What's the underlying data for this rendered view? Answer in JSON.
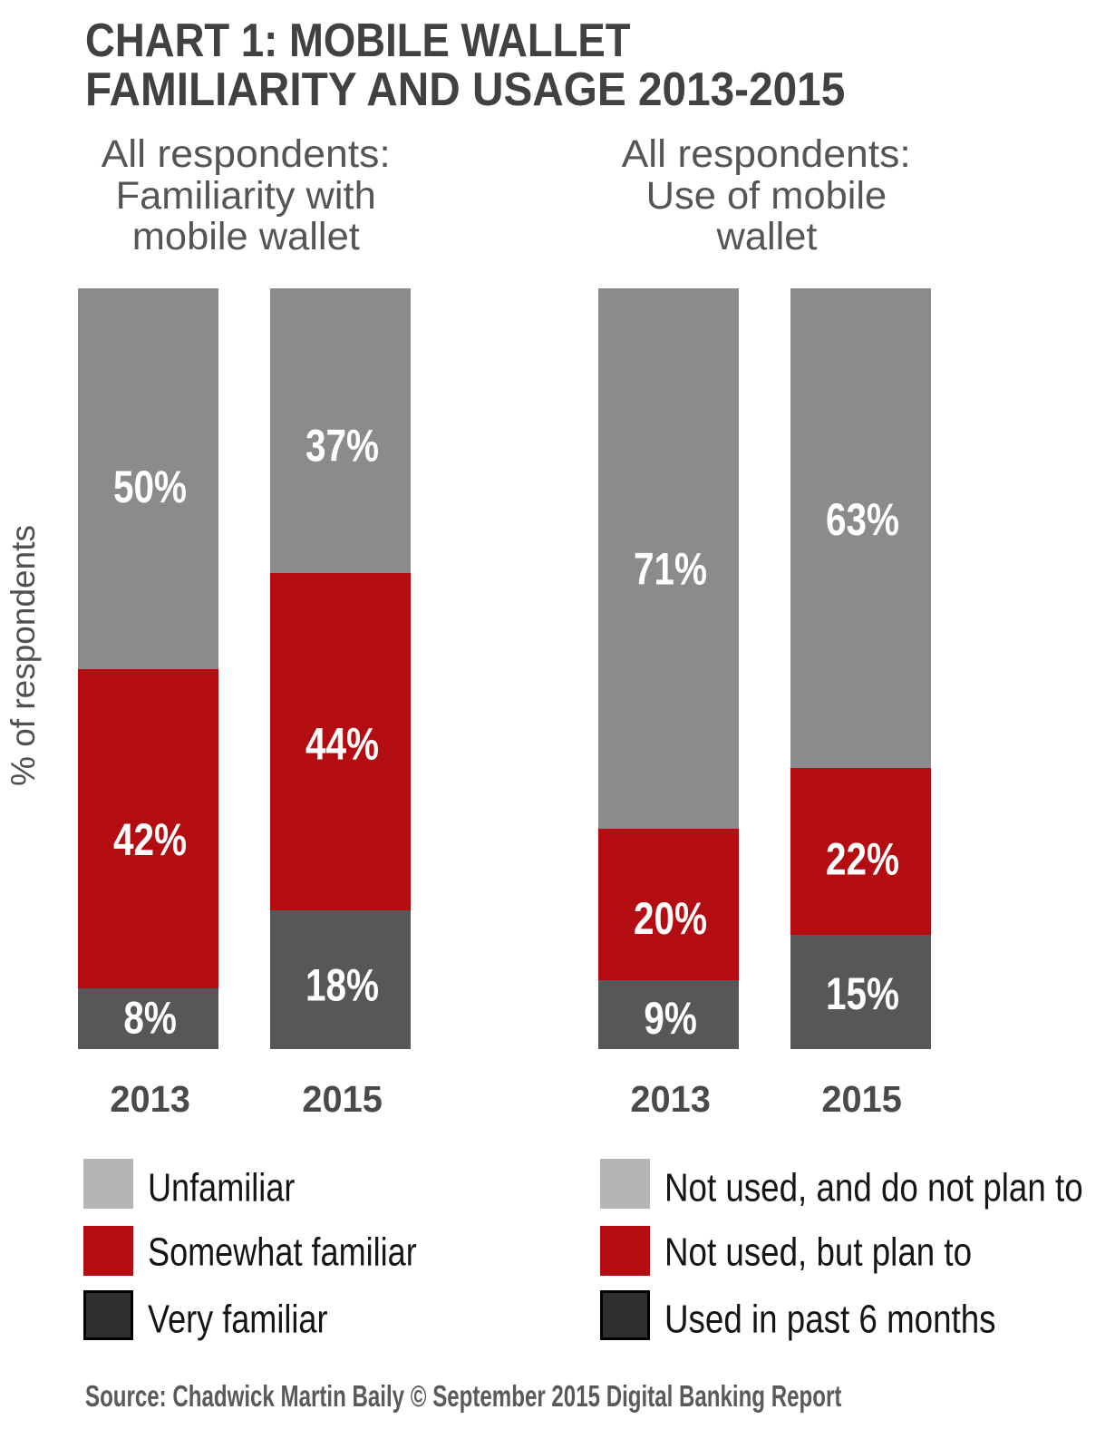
{
  "title": {
    "line1": "CHART 1: MOBILE WALLET",
    "line2": "FAMILIARITY AND USAGE 2013-2015"
  },
  "source_note": "Source: Chadwick Martin Baily © September 2015 Digital Banking Report",
  "chart_data": {
    "type": "bar",
    "stacked": true,
    "title": "CHART 1: MOBILE WALLET FAMILIARITY AND USAGE 2013-2015",
    "xlabel": "",
    "ylabel": "% of respondents",
    "value_suffix": "%",
    "ylim": [
      0,
      100
    ],
    "grid": false,
    "axes_visible": false,
    "legend_position": "bottom",
    "segment_order": "top-to-bottom",
    "palette": [
      {
        "role": "top",
        "bar_color": "#8b8b8d",
        "legend_color": "#b5b5b7"
      },
      {
        "role": "middle",
        "bar_color": "#b30d12",
        "legend_color": "#b30d12"
      },
      {
        "role": "bottom",
        "bar_color": "#57575a",
        "legend_color": "#2f2f31"
      }
    ],
    "groups": [
      {
        "id": "familiarity",
        "subtitle_lines": [
          "All respondents:",
          "Familiarity with",
          "mobile wallet"
        ],
        "categories": [
          "2013",
          "2015"
        ],
        "series": [
          {
            "name": "Unfamiliar",
            "values": [
              50,
              37
            ]
          },
          {
            "name": "Somewhat familiar",
            "values": [
              42,
              44
            ]
          },
          {
            "name": "Very familiar",
            "values": [
              8,
              18
            ]
          }
        ]
      },
      {
        "id": "usage",
        "subtitle_lines": [
          "All respondents:",
          "Use of mobile",
          "wallet"
        ],
        "categories": [
          "2013",
          "2015"
        ],
        "series": [
          {
            "name": "Not used, and do not plan to",
            "values": [
              71,
              63
            ]
          },
          {
            "name": "Not used, but plan to",
            "values": [
              20,
              22
            ]
          },
          {
            "name": "Used in past 6 months",
            "values": [
              9,
              15
            ]
          }
        ]
      }
    ]
  }
}
